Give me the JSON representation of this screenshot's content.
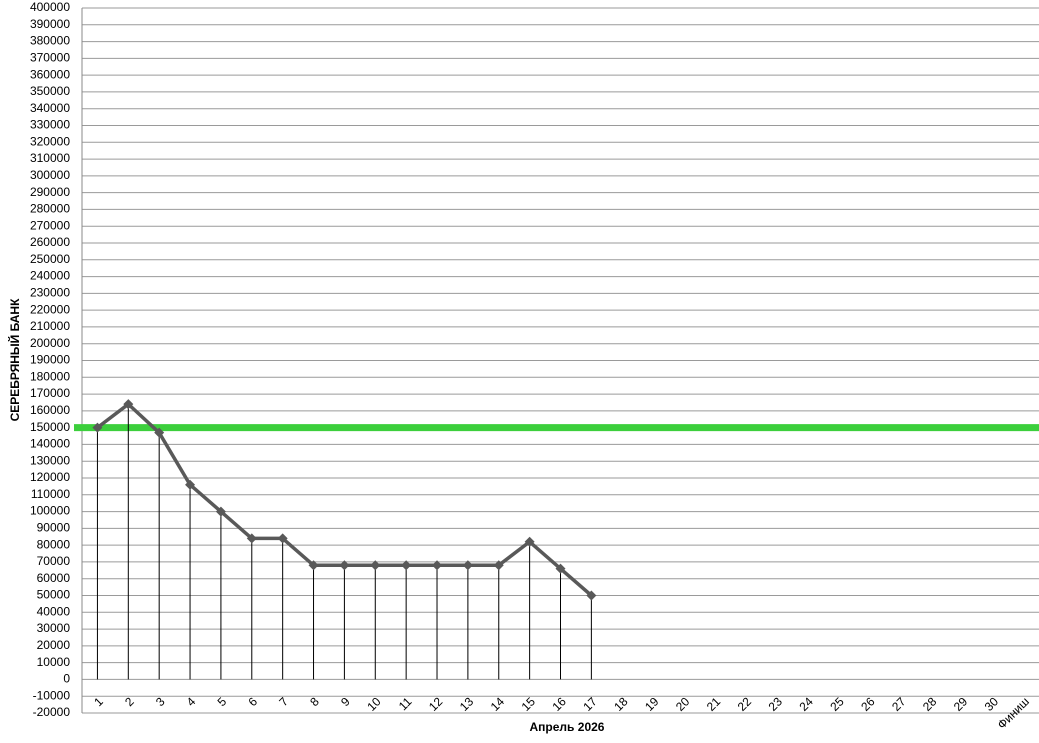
{
  "chart_data": {
    "type": "line",
    "y_label": "СЕРЕБРЯНЫЙ БАНК",
    "x_label": "Апрель 2026",
    "categories": [
      "1",
      "2",
      "3",
      "4",
      "5",
      "6",
      "7",
      "8",
      "9",
      "10",
      "11",
      "12",
      "13",
      "14",
      "15",
      "16",
      "17",
      "18",
      "19",
      "20",
      "21",
      "22",
      "23",
      "24",
      "25",
      "26",
      "27",
      "28",
      "29",
      "30",
      "Финиш"
    ],
    "series": [
      {
        "color": "#595959",
        "values": [
          150000,
          164000,
          147000,
          116000,
          100000,
          84000,
          84000,
          68000,
          68000,
          68000,
          68000,
          68000,
          68000,
          68000,
          82000,
          66000,
          50000,
          null,
          null,
          null,
          null,
          null,
          null,
          null,
          null,
          null,
          null,
          null,
          null,
          null,
          null
        ]
      }
    ],
    "reference_line": {
      "value": 150000,
      "color": "#3ccf3c"
    },
    "drop_lines": true,
    "ylim": [
      -20000,
      400000
    ],
    "yticks": [
      -20000,
      -10000,
      0,
      10000,
      20000,
      30000,
      40000,
      50000,
      60000,
      70000,
      80000,
      90000,
      100000,
      110000,
      120000,
      130000,
      140000,
      150000,
      160000,
      170000,
      180000,
      190000,
      200000,
      210000,
      220000,
      230000,
      240000,
      250000,
      260000,
      270000,
      280000,
      290000,
      300000,
      310000,
      320000,
      330000,
      340000,
      350000,
      360000,
      370000,
      380000,
      390000,
      400000
    ],
    "grid": true
  }
}
